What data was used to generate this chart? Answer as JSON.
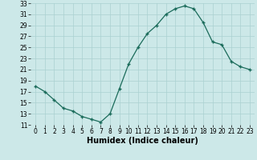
{
  "title": "",
  "xlabel": "Humidex (Indice chaleur)",
  "ylabel": "",
  "x": [
    0,
    1,
    2,
    3,
    4,
    5,
    6,
    7,
    8,
    9,
    10,
    11,
    12,
    13,
    14,
    15,
    16,
    17,
    18,
    19,
    20,
    21,
    22,
    23
  ],
  "y": [
    18,
    17,
    15.5,
    14,
    13.5,
    12.5,
    12,
    11.5,
    13,
    17.5,
    22,
    25,
    27.5,
    29,
    31,
    32,
    32.5,
    32,
    29.5,
    26,
    25.5,
    22.5,
    21.5,
    21
  ],
  "line_color": "#1a6b5a",
  "marker": "+",
  "bg_color": "#cce8e8",
  "grid_color": "#aad0d0",
  "ylim": [
    11,
    33
  ],
  "yticks": [
    11,
    13,
    15,
    17,
    19,
    21,
    23,
    25,
    27,
    29,
    31,
    33
  ],
  "xticks": [
    0,
    1,
    2,
    3,
    4,
    5,
    6,
    7,
    8,
    9,
    10,
    11,
    12,
    13,
    14,
    15,
    16,
    17,
    18,
    19,
    20,
    21,
    22,
    23
  ],
  "tick_fontsize": 5.5,
  "xlabel_fontsize": 7
}
